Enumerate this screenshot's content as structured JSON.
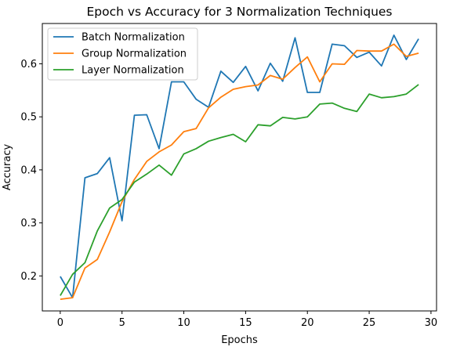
{
  "chart_data": {
    "type": "line",
    "title": "Epoch vs Accuracy for 3 Normalization Techniques",
    "xlabel": "Epochs",
    "ylabel": "Accuracy",
    "xlim": [
      -1.45,
      30.45
    ],
    "ylim": [
      0.134,
      0.676
    ],
    "xticks": [
      0,
      5,
      10,
      15,
      20,
      25,
      30
    ],
    "yticks": [
      0.2,
      0.3,
      0.4,
      0.5,
      0.6
    ],
    "x": [
      0,
      1,
      2,
      3,
      4,
      5,
      6,
      7,
      8,
      9,
      10,
      11,
      12,
      13,
      14,
      15,
      16,
      17,
      18,
      19,
      20,
      21,
      22,
      23,
      24,
      25,
      26,
      27,
      28,
      29
    ],
    "legend_position": "upper-left",
    "grid": false,
    "series": [
      {
        "name": "Batch Normalization",
        "color": "#1f77b4",
        "values": [
          0.199,
          0.159,
          0.385,
          0.393,
          0.423,
          0.304,
          0.503,
          0.504,
          0.44,
          0.566,
          0.566,
          0.533,
          0.518,
          0.586,
          0.565,
          0.595,
          0.549,
          0.601,
          0.567,
          0.649,
          0.546,
          0.546,
          0.637,
          0.634,
          0.612,
          0.622,
          0.596,
          0.654,
          0.608,
          0.647
        ]
      },
      {
        "name": "Group Normalization",
        "color": "#ff7f0e",
        "values": [
          0.156,
          0.159,
          0.215,
          0.231,
          0.283,
          0.34,
          0.382,
          0.416,
          0.434,
          0.447,
          0.472,
          0.478,
          0.517,
          0.537,
          0.552,
          0.557,
          0.56,
          0.578,
          0.571,
          0.593,
          0.613,
          0.566,
          0.6,
          0.599,
          0.625,
          0.624,
          0.624,
          0.637,
          0.614,
          0.62
        ]
      },
      {
        "name": "Layer Normalization",
        "color": "#2ca02c",
        "values": [
          0.163,
          0.203,
          0.225,
          0.285,
          0.328,
          0.344,
          0.377,
          0.392,
          0.409,
          0.39,
          0.43,
          0.44,
          0.454,
          0.461,
          0.467,
          0.453,
          0.485,
          0.483,
          0.499,
          0.496,
          0.5,
          0.524,
          0.526,
          0.516,
          0.51,
          0.543,
          0.536,
          0.538,
          0.543,
          0.561
        ]
      }
    ]
  }
}
